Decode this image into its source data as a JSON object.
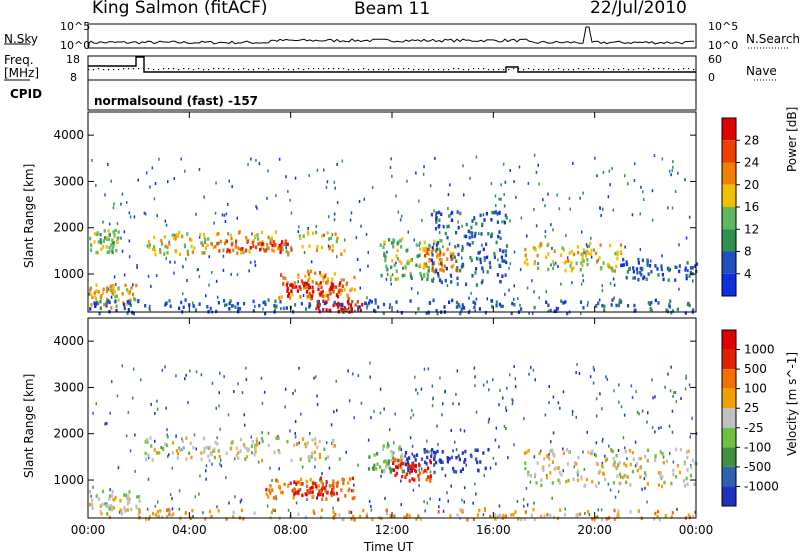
{
  "header": {
    "station": "King Salmon (fitACF)",
    "beam": "Beam 11",
    "date": "22/Jul/2010"
  },
  "top_panels": {
    "nsky_label": "N.Sky",
    "nsky_ticks": [
      "10^5",
      "10^0"
    ],
    "nsearch_label": "N.Search",
    "nsearch_ticks": [
      "10^5",
      "10^0"
    ],
    "freq_label": "Freq.",
    "freq_unit": "[MHz]",
    "freq_ticks": [
      "18",
      "8"
    ],
    "cpid_label": "CPID",
    "nave_label": "Nave",
    "nave_ticks": [
      "60",
      "0"
    ],
    "program_label": "normalsound (fast) -157"
  },
  "chart_data": [
    {
      "type": "heatmap",
      "name": "power-panel",
      "xlabel": "",
      "ylabel": "Slant Range [km]",
      "x_range": [
        "00:00",
        "24:00"
      ],
      "ylim": [
        180,
        4500
      ],
      "y_ticks": [
        "1000",
        "2000",
        "3000",
        "4000"
      ],
      "colorbar": {
        "label": "Power [dB]",
        "ticks": [
          "4",
          "8",
          "12",
          "16",
          "20",
          "24",
          "28"
        ],
        "colors": [
          "#1030e0",
          "#2050c0",
          "#2f8f4f",
          "#5fb85f",
          "#f0c000",
          "#f08000",
          "#f04000",
          "#e00000"
        ]
      },
      "regions": [
        {
          "t0": 0.0,
          "t1": 1.9,
          "r0": 300,
          "r1": 800,
          "level": 4
        },
        {
          "t0": 0.0,
          "t1": 1.2,
          "r0": 1500,
          "r1": 2000,
          "level": 3
        },
        {
          "t0": 2.2,
          "t1": 10.2,
          "r0": 1450,
          "r1": 1950,
          "level": 4
        },
        {
          "t0": 4.8,
          "t1": 8.0,
          "r0": 1500,
          "r1": 1750,
          "level": 6
        },
        {
          "t0": 7.5,
          "t1": 10.5,
          "r0": 500,
          "r1": 1100,
          "level": 5
        },
        {
          "t0": 7.8,
          "t1": 10.0,
          "r0": 550,
          "r1": 850,
          "level": 7
        },
        {
          "t0": 9.0,
          "t1": 10.8,
          "r0": 200,
          "r1": 450,
          "level": 7
        },
        {
          "t0": 11.5,
          "t1": 14.0,
          "r0": 900,
          "r1": 1800,
          "level": 3
        },
        {
          "t0": 13.2,
          "t1": 14.6,
          "r0": 1100,
          "r1": 1600,
          "level": 5
        },
        {
          "t0": 13.5,
          "t1": 16.5,
          "r0": 800,
          "r1": 2400,
          "level": 1
        },
        {
          "t0": 17.2,
          "t1": 21.0,
          "r0": 1100,
          "r1": 1700,
          "level": 4
        },
        {
          "t0": 21.0,
          "t1": 24.0,
          "r0": 900,
          "r1": 1350,
          "level": 1
        },
        {
          "t0": 0.0,
          "t1": 24.0,
          "r0": 180,
          "r1": 480,
          "level": 1
        }
      ]
    },
    {
      "type": "heatmap",
      "name": "velocity-panel",
      "xlabel": "Time UT",
      "ylabel": "Slant Range [km]",
      "x_range": [
        "00:00",
        "24:00"
      ],
      "ylim": [
        180,
        4500
      ],
      "y_ticks": [
        "1000",
        "2000",
        "3000",
        "4000"
      ],
      "x_ticks": [
        "00:00",
        "04:00",
        "08:00",
        "12:00",
        "16:00",
        "20:00",
        "00:00"
      ],
      "colorbar": {
        "label": "Velocity [m s^-1]",
        "ticks": [
          "1000",
          "500",
          "100",
          "25",
          "-25",
          "-100",
          "-500",
          "-1000"
        ],
        "colors": [
          "#2030c0",
          "#3060b0",
          "#409040",
          "#70c040",
          "#c0c0c0",
          "#f0a000",
          "#f07000",
          "#e02000",
          "#e00000"
        ]
      },
      "regions": [
        {
          "t0": 0.0,
          "t1": 2.0,
          "r0": 300,
          "r1": 800,
          "level": 4
        },
        {
          "t0": 2.2,
          "t1": 10.0,
          "r0": 1450,
          "r1": 1950,
          "level": 4
        },
        {
          "t0": 7.0,
          "t1": 10.5,
          "r0": 600,
          "r1": 1100,
          "level": 6
        },
        {
          "t0": 8.0,
          "t1": 9.8,
          "r0": 700,
          "r1": 1000,
          "level": 7
        },
        {
          "t0": 11.0,
          "t1": 12.5,
          "r0": 1200,
          "r1": 1800,
          "level": 3
        },
        {
          "t0": 12.5,
          "t1": 15.8,
          "r0": 1200,
          "r1": 1700,
          "level": 0
        },
        {
          "t0": 12.0,
          "t1": 13.5,
          "r0": 1000,
          "r1": 1500,
          "level": 7
        },
        {
          "t0": 17.2,
          "t1": 24.0,
          "r0": 900,
          "r1": 1700,
          "level": 4
        },
        {
          "t0": 0.0,
          "t1": 24.0,
          "r0": 180,
          "r1": 400,
          "level": 5
        }
      ]
    }
  ]
}
